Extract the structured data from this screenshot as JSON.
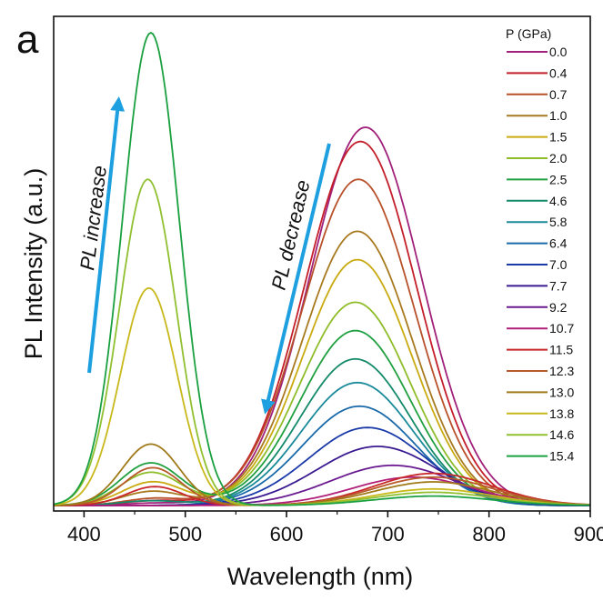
{
  "panel_label": "a",
  "chart_data": {
    "type": "line",
    "xlabel": "Wavelength (nm)",
    "ylabel": "PL Intensity (a.u.)",
    "xlim": [
      370,
      900
    ],
    "ylim": [
      0,
      1.0
    ],
    "x_ticks": [
      400,
      500,
      600,
      700,
      800,
      900
    ],
    "y_ticks_visible": false,
    "grid": false,
    "legend": {
      "title": "P (GPa)",
      "placement": "top-right",
      "entries": [
        "0.0",
        "0.4",
        "0.7",
        "1.0",
        "1.5",
        "2.0",
        "2.5",
        "4.6",
        "5.8",
        "6.4",
        "7.0",
        "7.7",
        "9.2",
        "10.7",
        "11.5",
        "12.3",
        "13.0",
        "13.8",
        "14.6",
        "15.4"
      ]
    },
    "series": [
      {
        "name": "0.0",
        "color": "#a0207a",
        "peaks": [
          {
            "center": 678,
            "amp": 0.8,
            "sigma": 55
          },
          {
            "center": 470,
            "amp": 0.005,
            "sigma": 30
          }
        ]
      },
      {
        "name": "0.4",
        "color": "#c41e2a",
        "peaks": [
          {
            "center": 673,
            "amp": 0.77,
            "sigma": 55
          },
          {
            "center": 470,
            "amp": 0.01,
            "sigma": 30
          }
        ]
      },
      {
        "name": "0.7",
        "color": "#b8502a",
        "peaks": [
          {
            "center": 671,
            "amp": 0.69,
            "sigma": 55
          },
          {
            "center": 470,
            "amp": 0.015,
            "sigma": 30
          }
        ]
      },
      {
        "name": "1.0",
        "color": "#a87a20",
        "peaks": [
          {
            "center": 670,
            "amp": 0.58,
            "sigma": 54
          },
          {
            "center": 468,
            "amp": 0.03,
            "sigma": 30
          }
        ]
      },
      {
        "name": "1.5",
        "color": "#c9aa10",
        "peaks": [
          {
            "center": 670,
            "amp": 0.52,
            "sigma": 54
          },
          {
            "center": 468,
            "amp": 0.05,
            "sigma": 30
          }
        ]
      },
      {
        "name": "2.0",
        "color": "#8fbd2a",
        "peaks": [
          {
            "center": 668,
            "amp": 0.43,
            "sigma": 54
          },
          {
            "center": 466,
            "amp": 0.07,
            "sigma": 30
          }
        ]
      },
      {
        "name": "2.5",
        "color": "#20a040",
        "peaks": [
          {
            "center": 668,
            "amp": 0.37,
            "sigma": 54
          },
          {
            "center": 466,
            "amp": 0.09,
            "sigma": 30
          }
        ]
      },
      {
        "name": "4.6",
        "color": "#148a6a",
        "peaks": [
          {
            "center": 668,
            "amp": 0.31,
            "sigma": 54
          },
          {
            "center": 466,
            "amp": 0.01,
            "sigma": 30
          }
        ]
      },
      {
        "name": "5.8",
        "color": "#1a8a9a",
        "peaks": [
          {
            "center": 670,
            "amp": 0.26,
            "sigma": 55
          }
        ]
      },
      {
        "name": "6.4",
        "color": "#1a6aaa",
        "peaks": [
          {
            "center": 672,
            "amp": 0.21,
            "sigma": 56
          }
        ]
      },
      {
        "name": "7.0",
        "color": "#1a3aa8",
        "peaks": [
          {
            "center": 680,
            "amp": 0.165,
            "sigma": 58
          }
        ]
      },
      {
        "name": "7.7",
        "color": "#3a1a90",
        "peaks": [
          {
            "center": 690,
            "amp": 0.125,
            "sigma": 60
          }
        ]
      },
      {
        "name": "9.2",
        "color": "#6a1a90",
        "peaks": [
          {
            "center": 705,
            "amp": 0.085,
            "sigma": 62
          }
        ]
      },
      {
        "name": "10.7",
        "color": "#b0207a",
        "peaks": [
          {
            "center": 725,
            "amp": 0.06,
            "sigma": 60
          }
        ]
      },
      {
        "name": "11.5",
        "color": "#c8282a",
        "peaks": [
          {
            "center": 745,
            "amp": 0.068,
            "sigma": 58
          },
          {
            "center": 470,
            "amp": 0.04,
            "sigma": 28
          }
        ]
      },
      {
        "name": "12.3",
        "color": "#b85a2a",
        "peaks": [
          {
            "center": 745,
            "amp": 0.06,
            "sigma": 58
          },
          {
            "center": 468,
            "amp": 0.08,
            "sigma": 28
          }
        ]
      },
      {
        "name": "13.0",
        "color": "#a07a1a",
        "peaks": [
          {
            "center": 745,
            "amp": 0.05,
            "sigma": 58
          },
          {
            "center": 466,
            "amp": 0.13,
            "sigma": 28
          }
        ]
      },
      {
        "name": "13.8",
        "color": "#c8b81a",
        "peaks": [
          {
            "center": 745,
            "amp": 0.035,
            "sigma": 58
          },
          {
            "center": 464,
            "amp": 0.46,
            "sigma": 28
          }
        ]
      },
      {
        "name": "14.6",
        "color": "#90c030",
        "peaks": [
          {
            "center": 745,
            "amp": 0.028,
            "sigma": 58
          },
          {
            "center": 463,
            "amp": 0.69,
            "sigma": 28
          }
        ]
      },
      {
        "name": "15.4",
        "color": "#1aa040",
        "peaks": [
          {
            "center": 745,
            "amp": 0.02,
            "sigma": 58
          },
          {
            "center": 466,
            "amp": 1.0,
            "sigma": 28
          }
        ]
      }
    ],
    "annotations": [
      {
        "text": "PL increase",
        "color": "#1ea0e0",
        "arrow": "up"
      },
      {
        "text": "PL decrease",
        "color": "#1ea0e0",
        "arrow": "down"
      }
    ]
  }
}
